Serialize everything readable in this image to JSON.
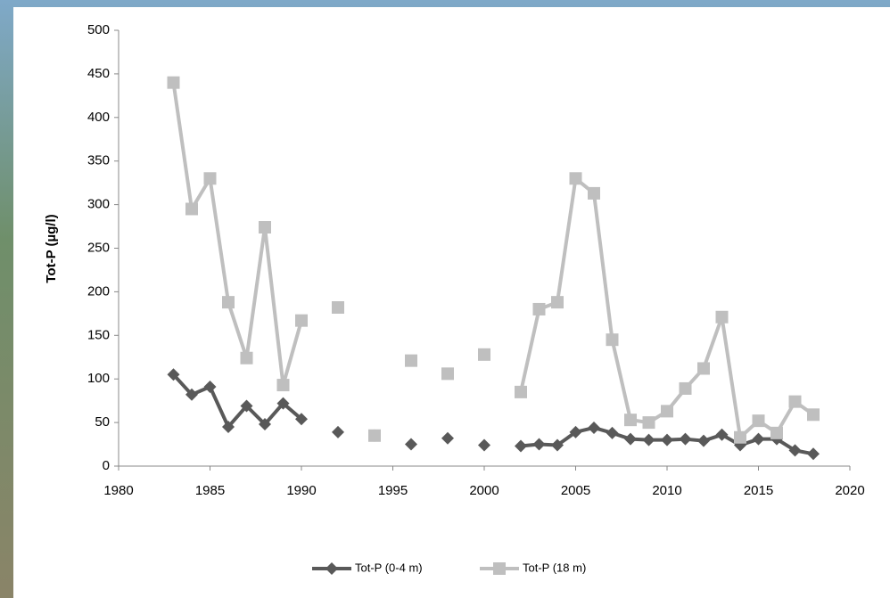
{
  "chart_data": {
    "type": "line",
    "y_label": "Tot-P (µg/l)",
    "x": [
      1983,
      1984,
      1985,
      1986,
      1987,
      1988,
      1989,
      1990,
      1991,
      1992,
      1993,
      1994,
      1995,
      1996,
      1997,
      1998,
      1999,
      2000,
      2001,
      2002,
      2003,
      2004,
      2005,
      2006,
      2007,
      2008,
      2009,
      2010,
      2011,
      2012,
      2013,
      2014,
      2015,
      2016,
      2017,
      2018
    ],
    "series": [
      {
        "name": "Tot-P (0-4 m)",
        "color": "#595959",
        "marker": "diamond",
        "values": [
          105,
          82,
          91,
          45,
          69,
          48,
          72,
          54,
          null,
          39,
          null,
          35,
          null,
          25,
          null,
          32,
          null,
          24,
          null,
          23,
          25,
          24,
          39,
          44,
          38,
          31,
          30,
          30,
          31,
          29,
          36,
          24,
          31,
          31,
          18,
          14
        ]
      },
      {
        "name": "Tot-P (18 m)",
        "color": "#bfbfbf",
        "marker": "square",
        "values": [
          440,
          295,
          330,
          188,
          124,
          274,
          93,
          167,
          null,
          182,
          null,
          35,
          null,
          121,
          null,
          106,
          null,
          128,
          null,
          85,
          180,
          188,
          330,
          313,
          145,
          53,
          50,
          63,
          89,
          112,
          171,
          33,
          52,
          38,
          74,
          59
        ]
      }
    ],
    "xlim": [
      1980,
      2020
    ],
    "xticks": [
      1980,
      1985,
      1990,
      1995,
      2000,
      2005,
      2010,
      2015,
      2020
    ],
    "ylim": [
      0,
      500
    ],
    "yticks": [
      0,
      50,
      100,
      150,
      200,
      250,
      300,
      350,
      400,
      450,
      500
    ],
    "legend": "bottom"
  }
}
